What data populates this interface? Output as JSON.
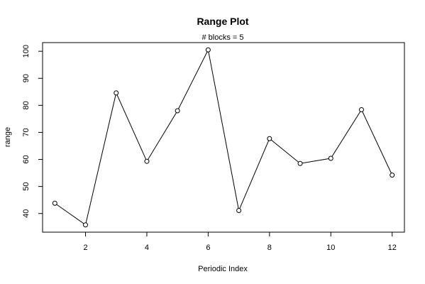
{
  "chart_data": {
    "type": "line",
    "title": "Range Plot",
    "subtitle": "# blocks =  5",
    "xlabel": "Periodic Index",
    "ylabel": "range",
    "x": [
      1,
      2,
      3,
      4,
      5,
      6,
      7,
      8,
      9,
      10,
      11,
      12
    ],
    "values": [
      43.8,
      35.8,
      84.6,
      59.3,
      78.0,
      100.5,
      41.1,
      67.7,
      58.5,
      60.4,
      78.4,
      54.2
    ],
    "xlim": [
      0.6,
      12.4
    ],
    "ylim": [
      33.1,
      103.2
    ],
    "x_ticks": [
      2,
      4,
      6,
      8,
      10,
      12
    ],
    "y_ticks": [
      40,
      50,
      60,
      70,
      80,
      90,
      100
    ],
    "grid": false,
    "legend": "none",
    "line_color": "#000000",
    "marker": "open-circle"
  }
}
